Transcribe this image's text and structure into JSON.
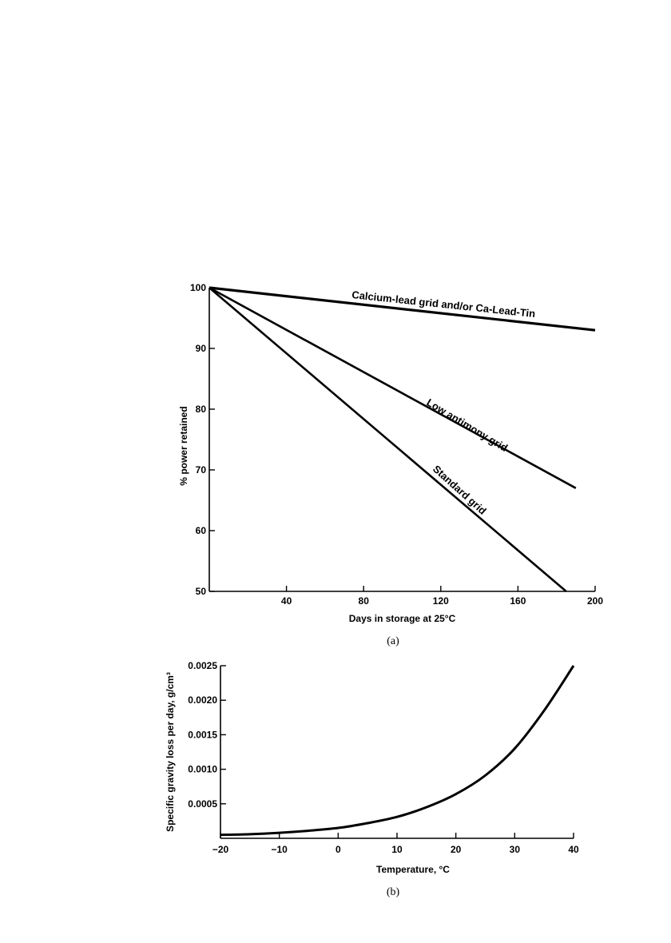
{
  "chart_data": [
    {
      "type": "line",
      "panel_label": "(a)",
      "xlabel": "Days in storage at 25°C",
      "ylabel": "% power retained",
      "xlim": [
        0,
        200
      ],
      "ylim": [
        50,
        100
      ],
      "xticks": [
        40,
        80,
        120,
        160,
        200
      ],
      "yticks": [
        50,
        60,
        70,
        80,
        90,
        100
      ],
      "grid": false,
      "colors": {
        "line": "#000000"
      },
      "series": [
        {
          "name": "Calcium-lead grid and/or Ca-Lead-Tin",
          "x": [
            0,
            200
          ],
          "y": [
            100,
            93
          ]
        },
        {
          "name": "Low antimony grid",
          "x": [
            0,
            190
          ],
          "y": [
            100,
            67
          ]
        },
        {
          "name": "Standard grid",
          "x": [
            0,
            185
          ],
          "y": [
            100,
            50
          ]
        }
      ]
    },
    {
      "type": "line",
      "panel_label": "(b)",
      "xlabel": "Temperature, °C",
      "ylabel": "Specific gravity loss per day, g/cm³",
      "xlim": [
        -20,
        40
      ],
      "ylim": [
        0,
        0.0025
      ],
      "xticks": [
        -20,
        -10,
        0,
        10,
        20,
        30,
        40
      ],
      "xtick_labels": [
        "−20",
        "−10",
        "0",
        "10",
        "20",
        "30",
        "40"
      ],
      "yticks": [
        0.0005,
        0.001,
        0.0015,
        0.002,
        0.0025
      ],
      "ytick_labels": [
        "0.0005",
        "0.0010",
        "0.0015",
        "0.0020",
        "0.0025"
      ],
      "grid": false,
      "colors": {
        "line": "#000000"
      },
      "series": [
        {
          "x": [
            -20,
            -15,
            -10,
            -5,
            0,
            5,
            10,
            15,
            20,
            25,
            30,
            35,
            40
          ],
          "y": [
            5e-05,
            6e-05,
            8e-05,
            0.00011,
            0.00015,
            0.00022,
            0.00031,
            0.00045,
            0.00064,
            0.00091,
            0.0013,
            0.00185,
            0.0025
          ]
        }
      ]
    }
  ]
}
